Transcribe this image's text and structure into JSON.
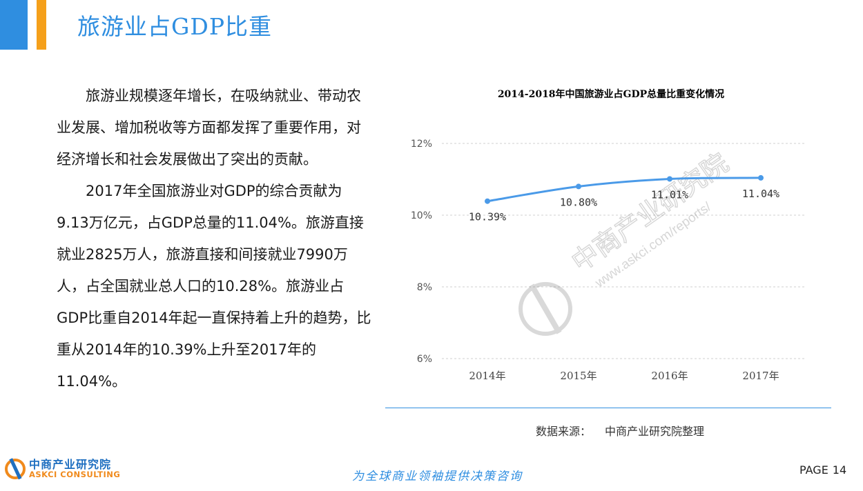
{
  "header": {
    "title": "旅游业占GDP比重",
    "accent_blue": "#2f8ee0",
    "accent_orange": "#f5a01a"
  },
  "body": {
    "paragraph1": "旅游业规模逐年增长，在吸纳就业、带动农业发展、增加税收等方面都发挥了重要作用，对经济增长和社会发展做出了突出的贡献。",
    "paragraph2": "2017年全国旅游业对GDP的综合贡献为9.13万亿元，占GDP总量的11.04%。旅游直接就业2825万人，旅游直接和间接就业7990万人，占全国就业总人口的10.28%。旅游业占GDP比重自2014年起一直保持着上升的趋势，比重从2014年的10.39%上升至2017年的11.04%。"
  },
  "chart_data": {
    "type": "line",
    "title": "2014-2018年中国旅游业占GDP总量比重变化情况",
    "categories": [
      "2014年",
      "2015年",
      "2016年",
      "2017年"
    ],
    "values": [
      10.39,
      10.8,
      11.01,
      11.04
    ],
    "data_labels": [
      "10.39%",
      "10.80%",
      "11.01%",
      "11.04%"
    ],
    "ylim": [
      6,
      12
    ],
    "yticks": [
      6,
      8,
      10,
      12
    ],
    "ytick_labels": [
      "6%",
      "8%",
      "10%",
      "12%"
    ],
    "grid": "dashed horizontal",
    "line_color": "#4a9ae8"
  },
  "watermark": {
    "name": "中商产业研究院",
    "url": "www.askci.com/reports/"
  },
  "source": {
    "label": "数据来源：",
    "value": "中商产业研究院整理"
  },
  "footer": {
    "logo_cn": "中商产业研究院",
    "logo_en": "ASKCI CONSULTING",
    "slogan": "为全球商业领袖提供决策咨询",
    "page_label": "PAGE",
    "page_number": "14"
  }
}
